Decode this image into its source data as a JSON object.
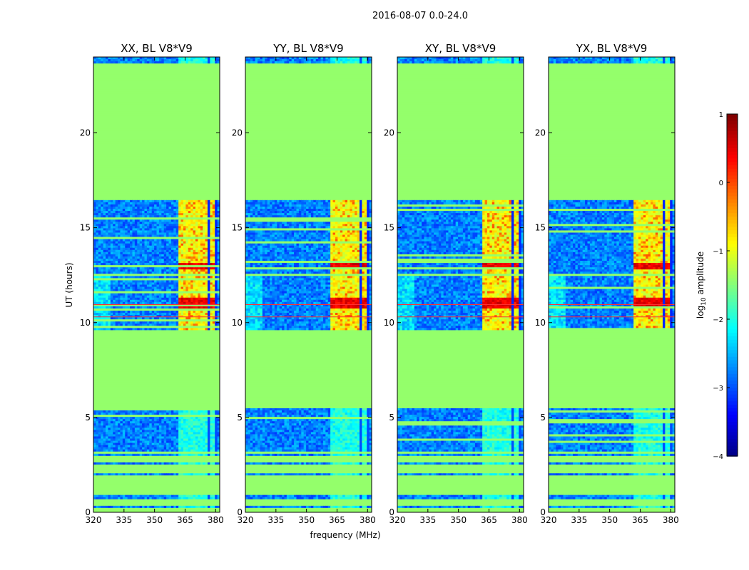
{
  "chart_data": {
    "type": "heatmap",
    "suptitle": "2016-08-07 0.0-24.0",
    "panels": [
      {
        "title": "XX, BL V8*V9",
        "polarization": "XX"
      },
      {
        "title": "YY, BL V8*V9",
        "polarization": "YY"
      },
      {
        "title": "XY, BL V8*V9",
        "polarization": "XY"
      },
      {
        "title": "YX, BL V8*V9",
        "polarization": "YX"
      }
    ],
    "xlabel": "frequency (MHz)",
    "ylabel": "UT (hours)",
    "xlim": [
      320,
      382
    ],
    "ylim": [
      0,
      24
    ],
    "xticks": [
      320,
      335,
      350,
      365,
      380
    ],
    "xtick_labels": [
      "320",
      "335",
      "350",
      "365",
      "380"
    ],
    "yticks": [
      0,
      5,
      10,
      15,
      20
    ],
    "ytick_labels": [
      "0",
      "5",
      "10",
      "15",
      "20"
    ],
    "colorbar": {
      "label": "log10 amplitude",
      "label_main": "log",
      "label_sub": "10",
      "label_rest": " amplitude",
      "range": [
        -4,
        1
      ],
      "ticks": [
        1,
        0,
        -1,
        -2,
        -3,
        -4
      ],
      "tick_labels": [
        "1",
        "0",
        "−1",
        "−2",
        "−3",
        "−4"
      ],
      "colormap": "jet"
    },
    "flagged_value": -1.4,
    "flagged_intervals_hours": [
      [
        5.5,
        9.6
      ],
      [
        12.5,
        12.6
      ],
      [
        16.5,
        23.7
      ]
    ],
    "data_intervals_hours": [
      [
        3.2,
        5.5
      ],
      [
        9.6,
        12.5
      ],
      [
        12.6,
        16.5
      ],
      [
        23.7,
        24.0
      ]
    ],
    "rfi_band_mhz": [
      362,
      381
    ],
    "strong_rfi_hours": [
      [
        10.7,
        11.3
      ],
      [
        12.8,
        13.1
      ]
    ]
  },
  "colors": {
    "flagged": "#99ff59",
    "background_low": "#0020ff",
    "axes": "#000000"
  }
}
